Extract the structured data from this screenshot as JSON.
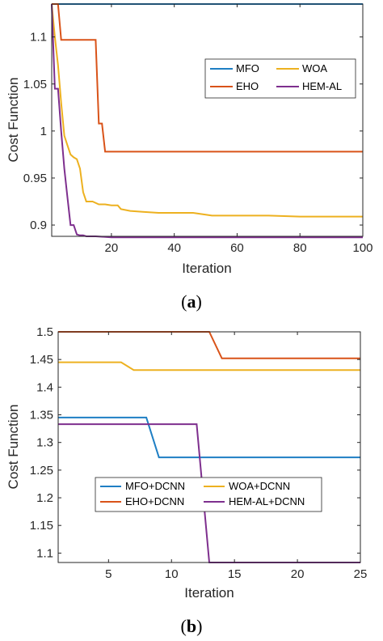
{
  "colors": {
    "blue": "#1f7fc4",
    "orange": "#d95319",
    "yellow": "#edb120",
    "purple": "#7e2f8e",
    "axis": "#262626"
  },
  "chart_data": [
    {
      "type": "line",
      "panel_label_open": "(",
      "panel_label_letter": "a",
      "panel_label_close": ")",
      "xlabel": "Iteration",
      "ylabel": "Cost Function",
      "xlim": [
        1,
        100
      ],
      "ylim": [
        0.888,
        1.135
      ],
      "xticks": [
        20,
        40,
        60,
        80,
        100
      ],
      "yticks": [
        0.9,
        0.95,
        1,
        1.05,
        1.1
      ],
      "ytick_labels": [
        "0.9",
        "0.95",
        "1",
        "1.05",
        "1.1"
      ],
      "grid": false,
      "legend": {
        "position": "top-right",
        "columns": 2
      },
      "series": [
        {
          "name": "MFO",
          "color": "#1f7fc4",
          "x": [
            1,
            100
          ],
          "y": [
            1.135,
            1.135
          ]
        },
        {
          "name": "WOA",
          "color": "#edb120",
          "x": [
            1,
            2,
            3,
            4,
            5,
            6,
            7,
            8,
            9,
            10,
            11,
            12,
            14,
            16,
            18,
            20,
            22,
            23,
            26,
            30,
            35,
            40,
            46,
            50,
            52,
            60,
            70,
            80,
            90,
            100
          ],
          "y": [
            1.135,
            1.1,
            1.07,
            1.03,
            0.995,
            0.985,
            0.975,
            0.972,
            0.97,
            0.96,
            0.935,
            0.925,
            0.925,
            0.922,
            0.922,
            0.921,
            0.921,
            0.917,
            0.915,
            0.914,
            0.913,
            0.913,
            0.913,
            0.911,
            0.91,
            0.91,
            0.91,
            0.909,
            0.909,
            0.909
          ]
        },
        {
          "name": "EHO",
          "color": "#d95319",
          "x": [
            1,
            2,
            3,
            4,
            15,
            16,
            17,
            18,
            100
          ],
          "y": [
            1.135,
            1.135,
            1.135,
            1.097,
            1.097,
            1.008,
            1.008,
            0.978,
            0.978
          ]
        },
        {
          "name": "HEM-AL",
          "color": "#7e2f8e",
          "x": [
            1,
            2,
            3,
            4,
            5,
            6,
            7,
            8,
            9,
            10,
            11,
            12,
            15,
            20,
            100
          ],
          "y": [
            1.135,
            1.045,
            1.045,
            1.0,
            0.96,
            0.93,
            0.9,
            0.9,
            0.89,
            0.889,
            0.889,
            0.888,
            0.888,
            0.887,
            0.887
          ]
        }
      ]
    },
    {
      "type": "line",
      "panel_label_open": "(",
      "panel_label_letter": "b",
      "panel_label_close": ")",
      "xlabel": "Iteration",
      "ylabel": "Cost Function",
      "xlim": [
        1,
        25
      ],
      "ylim": [
        1.083,
        1.5
      ],
      "xticks": [
        5,
        10,
        15,
        20,
        25
      ],
      "yticks": [
        1.1,
        1.15,
        1.2,
        1.25,
        1.3,
        1.35,
        1.4,
        1.45,
        1.5
      ],
      "ytick_labels": [
        "1.1",
        "1.15",
        "1.2",
        "1.25",
        "1.3",
        "1.35",
        "1.4",
        "1.45",
        "1.5"
      ],
      "grid": false,
      "legend": {
        "position": "bottom-right",
        "columns": 2
      },
      "series": [
        {
          "name": "MFO+DCNN",
          "color": "#1f7fc4",
          "x": [
            1,
            8,
            9,
            25
          ],
          "y": [
            1.345,
            1.345,
            1.273,
            1.273
          ]
        },
        {
          "name": "WOA+DCNN",
          "color": "#edb120",
          "x": [
            1,
            6,
            7,
            25
          ],
          "y": [
            1.445,
            1.445,
            1.431,
            1.431
          ]
        },
        {
          "name": "EHO+DCNN",
          "color": "#d95319",
          "x": [
            1,
            13,
            14,
            25
          ],
          "y": [
            1.5,
            1.5,
            1.452,
            1.452
          ]
        },
        {
          "name": "HEM-AL+DCNN",
          "color": "#7e2f8e",
          "x": [
            1,
            12,
            13,
            25
          ],
          "y": [
            1.333,
            1.333,
            1.083,
            1.083
          ]
        }
      ]
    }
  ]
}
